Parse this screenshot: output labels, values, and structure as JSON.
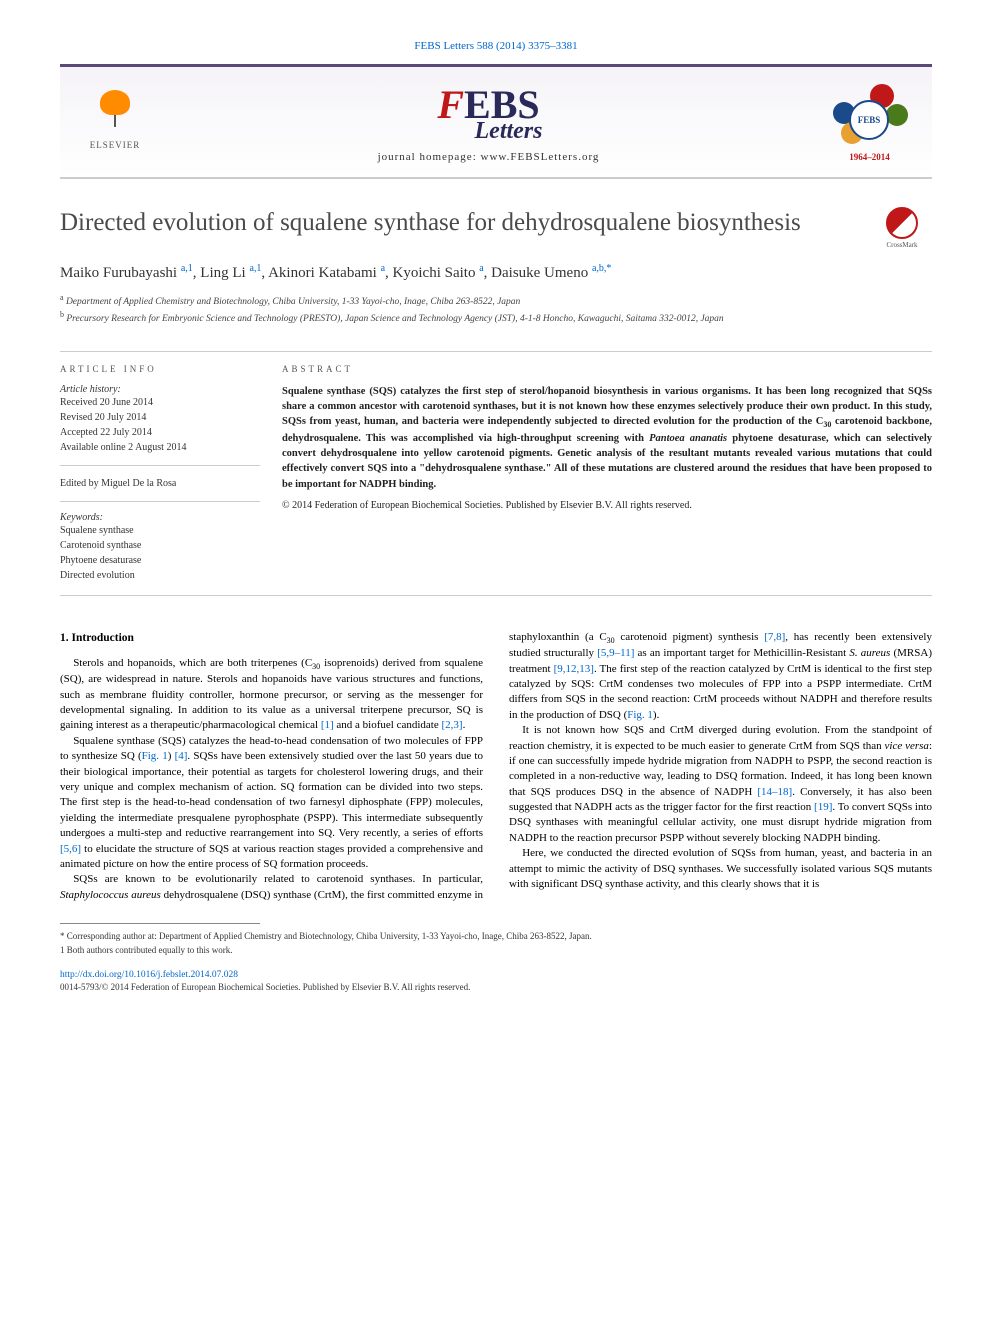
{
  "citation": "FEBS Letters 588 (2014) 3375–3381",
  "publisher": {
    "name": "ELSEVIER"
  },
  "journal": {
    "logo_f": "F",
    "logo_ebs": "EBS",
    "logo_letters": "Letters",
    "homepage_label": "journal homepage: www.FEBSLetters.org"
  },
  "anniversary": {
    "center": "FEBS",
    "years": "1964–2014"
  },
  "crossmark_label": "CrossMark",
  "title": "Directed evolution of squalene synthase for dehydrosqualene biosynthesis",
  "authors_html": "Maiko Furubayashi<sup>a,1</sup>, Ling Li<sup>a,1</sup>, Akinori Katabami<sup>a</sup>, Kyoichi Saito<sup>a</sup>, Daisuke Umeno<sup>a,b,*</sup>",
  "authors": [
    {
      "name": "Maiko Furubayashi",
      "marks": "a,1"
    },
    {
      "name": "Ling Li",
      "marks": "a,1"
    },
    {
      "name": "Akinori Katabami",
      "marks": "a"
    },
    {
      "name": "Kyoichi Saito",
      "marks": "a"
    },
    {
      "name": "Daisuke Umeno",
      "marks": "a,b,*"
    }
  ],
  "affiliations": [
    {
      "mark": "a",
      "text": "Department of Applied Chemistry and Biotechnology, Chiba University, 1-33 Yayoi-cho, Inage, Chiba 263-8522, Japan"
    },
    {
      "mark": "b",
      "text": "Precursory Research for Embryonic Science and Technology (PRESTO), Japan Science and Technology Agency (JST), 4-1-8 Honcho, Kawaguchi, Saitama 332-0012, Japan"
    }
  ],
  "article_info": {
    "heading": "ARTICLE INFO",
    "history_label": "Article history:",
    "received": "Received 20 June 2014",
    "revised": "Revised 20 July 2014",
    "accepted": "Accepted 22 July 2014",
    "online": "Available online 2 August 2014",
    "edited_by": "Edited by Miguel De la Rosa",
    "keywords_label": "Keywords:",
    "keywords": [
      "Squalene synthase",
      "Carotenoid synthase",
      "Phytoene desaturase",
      "Directed evolution"
    ]
  },
  "abstract": {
    "heading": "ABSTRACT",
    "text": "Squalene synthase (SQS) catalyzes the first step of sterol/hopanoid biosynthesis in various organisms. It has been long recognized that SQSs share a common ancestor with carotenoid synthases, but it is not known how these enzymes selectively produce their own product. In this study, SQSs from yeast, human, and bacteria were independently subjected to directed evolution for the production of the C30 carotenoid backbone, dehydrosqualene. This was accomplished via high-throughput screening with Pantoea ananatis phytoene desaturase, which can selectively convert dehydrosqualene into yellow carotenoid pigments. Genetic analysis of the resultant mutants revealed various mutations that could effectively convert SQS into a \"dehydrosqualene synthase.\" All of these mutations are clustered around the residues that have been proposed to be important for NADPH binding.",
    "copyright": "© 2014 Federation of European Biochemical Societies. Published by Elsevier B.V. All rights reserved."
  },
  "section_1_heading": "1. Introduction",
  "paragraphs": {
    "p1": "Sterols and hopanoids, which are both triterpenes (C30 isoprenoids) derived from squalene (SQ), are widespread in nature. Sterols and hopanoids have various structures and functions, such as membrane fluidity controller, hormone precursor, or serving as the messenger for developmental signaling. In addition to its value as a universal triterpene precursor, SQ is gaining interest as a therapeutic/pharmacological chemical [1] and a biofuel candidate [2,3].",
    "p2": "Squalene synthase (SQS) catalyzes the head-to-head condensation of two molecules of FPP to synthesize SQ (Fig. 1) [4]. SQSs have been extensively studied over the last 50 years due to their biological importance, their potential as targets for cholesterol lowering drugs, and their very unique and complex mechanism of action. SQ formation can be divided into two steps. The first step is the head-to-head condensation of two farnesyl diphosphate (FPP) molecules, yielding the intermediate presqualene pyrophosphate (PSPP). This intermediate subsequently undergoes a multi-step and reductive rearrangement into SQ. Very recently, a series of efforts [5,6] to elucidate the structure of SQS at various reaction stages provided a comprehensive and animated picture on how the entire process of SQ formation proceeds.",
    "p3": "SQSs are known to be evolutionarily related to carotenoid synthases. In particular, Staphylococcus aureus dehydrosqualene (DSQ) synthase (CrtM), the first committed enzyme in staphyloxanthin (a C30 carotenoid pigment) synthesis [7,8], has recently been extensively studied structurally [5,9–11] as an important target for Methicillin-Resistant S. aureus (MRSA) treatment [9,12,13]. The first step of the reaction catalyzed by CrtM is identical to the first step catalyzed by SQS: CrtM condenses two molecules of FPP into a PSPP intermediate. CrtM differs from SQS in the second reaction: CrtM proceeds without NADPH and therefore results in the production of DSQ (Fig. 1).",
    "p4": "It is not known how SQS and CrtM diverged during evolution. From the standpoint of reaction chemistry, it is expected to be much easier to generate CrtM from SQS than vice versa: if one can successfully impede hydride migration from NADPH to PSPP, the second reaction is completed in a non-reductive way, leading to DSQ formation. Indeed, it has long been known that SQS produces DSQ in the absence of NADPH [14–18]. Conversely, it has also been suggested that NADPH acts as the trigger factor for the first reaction [19]. To convert SQSs into DSQ synthases with meaningful cellular activity, one must disrupt hydride migration from NADPH to the reaction precursor PSPP without severely blocking NADPH binding.",
    "p5": "Here, we conducted the directed evolution of SQSs from human, yeast, and bacteria in an attempt to mimic the activity of DSQ synthases. We successfully isolated various SQS mutants with significant DSQ synthase activity, and this clearly shows that it is"
  },
  "footnotes": {
    "corresponding": "* Corresponding author at: Department of Applied Chemistry and Biotechnology, Chiba University, 1-33 Yayoi-cho, Inage, Chiba 263-8522, Japan.",
    "equal": "1 Both authors contributed equally to this work."
  },
  "doi": "http://dx.doi.org/10.1016/j.febslet.2014.07.028",
  "issn_line": "0014-5793/© 2014 Federation of European Biochemical Societies. Published by Elsevier B.V. All rights reserved.",
  "colors": {
    "link": "#0066cc",
    "header_border": "#5a4a7a",
    "febs_red": "#c01818",
    "febs_navy": "#2a2a5a"
  }
}
